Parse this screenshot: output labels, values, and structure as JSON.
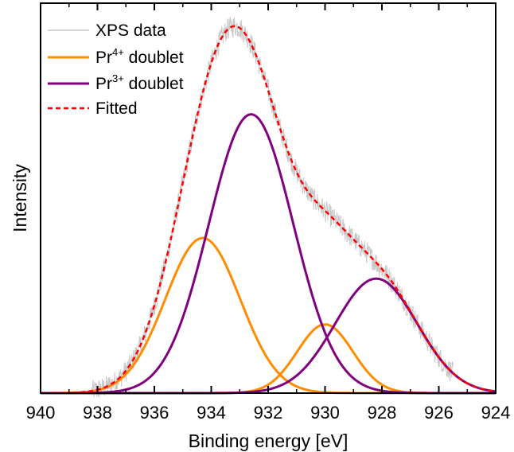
{
  "chart_data": {
    "type": "line",
    "title": "",
    "xlabel": "Binding energy [eV]",
    "ylabel": "Intensity",
    "xlim": [
      940,
      924
    ],
    "x_reversed": true,
    "x_ticks": [
      940,
      938,
      936,
      934,
      932,
      930,
      928,
      926,
      924
    ],
    "x_tick_labels": [
      "940",
      "938",
      "936",
      "934",
      "932",
      "930",
      "928",
      "926",
      "924"
    ],
    "y_ticks_shown": false,
    "ylim": [
      0,
      1.0
    ],
    "grid": false,
    "legend_position": "top-left",
    "legend": [
      {
        "text": "XPS data",
        "base": "XPS data",
        "sup": "",
        "tail": ""
      },
      {
        "text": "Pr4+ doublet",
        "base": "Pr",
        "sup": "4+",
        "tail": " doublet"
      },
      {
        "text": "Pr3+ doublet",
        "base": "Pr",
        "sup": "3+",
        "tail": " doublet"
      },
      {
        "text": "Fitted",
        "base": "Fitted",
        "sup": "",
        "tail": ""
      }
    ],
    "colors": {
      "xps": "#c8c8c8",
      "pr4": "#ff8c00",
      "pr3": "#800080",
      "fitted": "#ff0000"
    },
    "series": [
      {
        "name": "Pr4+ doublet",
        "style": "solid",
        "color": "#ff8c00",
        "components": [
          {
            "center": 934.3,
            "amplitude": 0.42,
            "fwhm": 3.1
          },
          {
            "center": 930.0,
            "amplitude": 0.186,
            "fwhm": 2.3
          }
        ]
      },
      {
        "name": "Pr3+ doublet",
        "style": "solid",
        "color": "#800080",
        "components": [
          {
            "center": 932.6,
            "amplitude": 0.755,
            "fwhm": 3.5
          },
          {
            "center": 928.2,
            "amplitude": 0.31,
            "fwhm": 3.4
          }
        ]
      },
      {
        "name": "Fitted",
        "style": "dashed",
        "color": "#ff0000",
        "sum_of": [
          "Pr4+ doublet",
          "Pr3+ doublet"
        ]
      },
      {
        "name": "XPS data",
        "style": "noisy",
        "color": "#c8c8c8",
        "follows": "Fitted",
        "x_range": [
          938.2,
          925.5
        ],
        "noise_amplitude": 0.03
      }
    ]
  }
}
